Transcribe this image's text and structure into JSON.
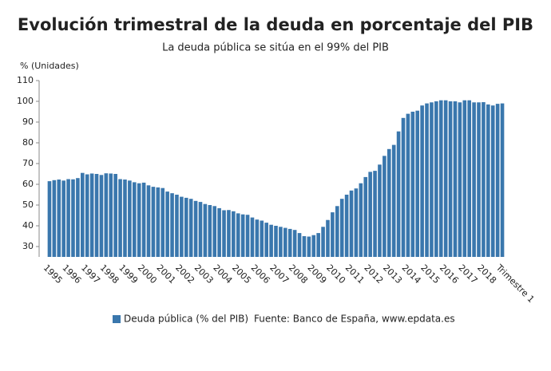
{
  "chart_data": {
    "type": "bar",
    "title": "Evolución trimestral de la deuda en porcentaje del PIB",
    "subtitle": "La deuda pública se sitúa en el 99% del PIB",
    "y_label": "% (Unidades)",
    "source": "Fuente: Banco de España, www.epdata.es",
    "categories": [
      "1995",
      null,
      null,
      null,
      "1996",
      null,
      null,
      null,
      "1997",
      null,
      null,
      null,
      "1998",
      null,
      null,
      null,
      "1999",
      null,
      null,
      null,
      "2000",
      null,
      null,
      null,
      "2001",
      null,
      null,
      null,
      "2002",
      null,
      null,
      null,
      "2003",
      null,
      null,
      null,
      "2004",
      null,
      null,
      null,
      "2005",
      null,
      null,
      null,
      "2006",
      null,
      null,
      null,
      "2007",
      null,
      null,
      null,
      "2008",
      null,
      null,
      null,
      "2009",
      null,
      null,
      null,
      "2010",
      null,
      null,
      null,
      "2011",
      null,
      null,
      null,
      "2012",
      null,
      null,
      null,
      "2013",
      null,
      null,
      null,
      "2014",
      null,
      null,
      null,
      "2015",
      null,
      null,
      null,
      "2016",
      null,
      null,
      null,
      "2017",
      null,
      null,
      null,
      "2018",
      null,
      null,
      null,
      "Trimestre 1"
    ],
    "series": [
      {
        "name": "Deuda pública (% del PIB)",
        "color": "#3a77ad",
        "values": [
          61.5,
          62,
          62.3,
          61.8,
          62.5,
          62.4,
          63,
          65.5,
          64.8,
          65.2,
          65,
          64.5,
          65.3,
          65.2,
          65,
          62.5,
          62.3,
          61.8,
          61,
          60.5,
          60.8,
          59.5,
          58.8,
          58.5,
          58.2,
          56.5,
          55.7,
          55,
          54,
          53.5,
          53,
          52,
          51.5,
          50.5,
          50,
          49.5,
          48.5,
          47.5,
          47.6,
          47,
          46,
          45.5,
          45.3,
          44,
          43,
          42.5,
          41.5,
          40.5,
          40,
          39.5,
          39,
          38.5,
          38,
          36.5,
          35,
          34.8,
          35.5,
          36.5,
          39.5,
          42.8,
          46.5,
          49.5,
          53,
          55,
          57,
          58,
          60.5,
          63.5,
          66,
          66.5,
          69.5,
          73.7,
          77,
          79,
          85.5,
          92,
          94,
          95,
          95.5,
          98,
          99,
          99.5,
          100,
          100.5,
          100.5,
          100,
          100,
          99.5,
          100.5,
          100.5,
          99.5,
          99.5,
          99.6,
          98.5,
          98,
          98.8,
          99
        ]
      }
    ],
    "ylim": [
      25,
      110
    ],
    "yticks": [
      30,
      40,
      50,
      60,
      70,
      80,
      90,
      100,
      110
    ],
    "grid": false
  }
}
